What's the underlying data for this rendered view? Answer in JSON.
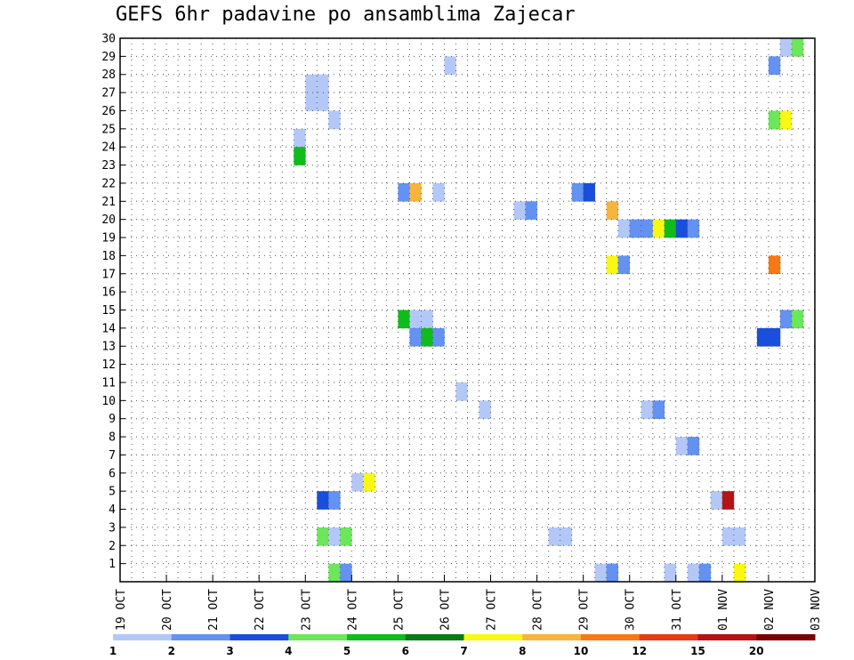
{
  "chart_data": {
    "type": "heatmap",
    "title": "GEFS 6hr padavine po ansamblima Zajecar",
    "xlabel": "",
    "ylabel": "",
    "x_tick_labels": [
      "19 OCT",
      "20 OCT",
      "21 OCT",
      "22 OCT",
      "23 OCT",
      "24 OCT",
      "25 OCT",
      "26 OCT",
      "27 OCT",
      "28 OCT",
      "29 OCT",
      "30 OCT",
      "31 OCT",
      "01 NOV",
      "02 NOV",
      "03 NOV"
    ],
    "y_tick_labels": [
      "1",
      "2",
      "3",
      "4",
      "5",
      "6",
      "7",
      "8",
      "9",
      "10",
      "11",
      "12",
      "13",
      "14",
      "15",
      "16",
      "17",
      "18",
      "19",
      "20",
      "21",
      "22",
      "23",
      "24",
      "25",
      "26",
      "27",
      "28",
      "29",
      "30"
    ],
    "x_range_steps": [
      0,
      60
    ],
    "y_range": [
      0,
      30
    ],
    "grid": true,
    "colorbar": {
      "labels": [
        "1",
        "2",
        "3",
        "4",
        "5",
        "6",
        "7",
        "8",
        "10",
        "12",
        "15",
        "20"
      ],
      "colors": [
        "#b4c8f8",
        "#6492f2",
        "#1a4fdc",
        "#6ce65a",
        "#10bc1c",
        "#0a7a14",
        "#f8f814",
        "#f8b43c",
        "#f87814",
        "#e63c14",
        "#b41414",
        "#780000"
      ]
    },
    "cells": [
      {
        "member": 30,
        "step": 57,
        "level": 1
      },
      {
        "member": 30,
        "step": 58,
        "level": 4
      },
      {
        "member": 29,
        "step": 28,
        "level": 1
      },
      {
        "member": 29,
        "step": 56,
        "level": 2
      },
      {
        "member": 28,
        "step": 16,
        "level": 1
      },
      {
        "member": 28,
        "step": 17,
        "level": 1
      },
      {
        "member": 27,
        "step": 16,
        "level": 1
      },
      {
        "member": 27,
        "step": 17,
        "level": 1
      },
      {
        "member": 26,
        "step": 18,
        "level": 1
      },
      {
        "member": 26,
        "step": 56,
        "level": 4
      },
      {
        "member": 26,
        "step": 57,
        "level": 7
      },
      {
        "member": 25,
        "step": 15,
        "level": 1
      },
      {
        "member": 24,
        "step": 15,
        "level": 5
      },
      {
        "member": 22,
        "step": 24,
        "level": 2
      },
      {
        "member": 22,
        "step": 25,
        "level": 8
      },
      {
        "member": 22,
        "step": 27,
        "level": 1
      },
      {
        "member": 22,
        "step": 39,
        "level": 2
      },
      {
        "member": 22,
        "step": 40,
        "level": 3
      },
      {
        "member": 21,
        "step": 34,
        "level": 1
      },
      {
        "member": 21,
        "step": 35,
        "level": 2
      },
      {
        "member": 21,
        "step": 42,
        "level": 8
      },
      {
        "member": 20,
        "step": 43,
        "level": 1
      },
      {
        "member": 20,
        "step": 44,
        "level": 2
      },
      {
        "member": 20,
        "step": 45,
        "level": 2
      },
      {
        "member": 20,
        "step": 46,
        "level": 7
      },
      {
        "member": 20,
        "step": 47,
        "level": 5
      },
      {
        "member": 20,
        "step": 48,
        "level": 3
      },
      {
        "member": 20,
        "step": 49,
        "level": 2
      },
      {
        "member": 18,
        "step": 42,
        "level": 7
      },
      {
        "member": 18,
        "step": 43,
        "level": 2
      },
      {
        "member": 18,
        "step": 56,
        "level": 9
      },
      {
        "member": 15,
        "step": 24,
        "level": 5
      },
      {
        "member": 15,
        "step": 25,
        "level": 1
      },
      {
        "member": 15,
        "step": 26,
        "level": 1
      },
      {
        "member": 15,
        "step": 57,
        "level": 2
      },
      {
        "member": 15,
        "step": 58,
        "level": 4
      },
      {
        "member": 14,
        "step": 25,
        "level": 2
      },
      {
        "member": 14,
        "step": 26,
        "level": 5
      },
      {
        "member": 14,
        "step": 27,
        "level": 2
      },
      {
        "member": 14,
        "step": 55,
        "level": 3
      },
      {
        "member": 14,
        "step": 56,
        "level": 3
      },
      {
        "member": 11,
        "step": 29,
        "level": 1
      },
      {
        "member": 10,
        "step": 31,
        "level": 1
      },
      {
        "member": 10,
        "step": 45,
        "level": 1
      },
      {
        "member": 10,
        "step": 46,
        "level": 2
      },
      {
        "member": 8,
        "step": 48,
        "level": 1
      },
      {
        "member": 8,
        "step": 49,
        "level": 2
      },
      {
        "member": 6,
        "step": 20,
        "level": 1
      },
      {
        "member": 6,
        "step": 21,
        "level": 7
      },
      {
        "member": 5,
        "step": 17,
        "level": 3
      },
      {
        "member": 5,
        "step": 18,
        "level": 2
      },
      {
        "member": 5,
        "step": 51,
        "level": 1
      },
      {
        "member": 5,
        "step": 52,
        "level": 11
      },
      {
        "member": 3,
        "step": 17,
        "level": 4
      },
      {
        "member": 3,
        "step": 18,
        "level": 1
      },
      {
        "member": 3,
        "step": 19,
        "level": 4
      },
      {
        "member": 3,
        "step": 37,
        "level": 1
      },
      {
        "member": 3,
        "step": 38,
        "level": 1
      },
      {
        "member": 3,
        "step": 52,
        "level": 1
      },
      {
        "member": 3,
        "step": 53,
        "level": 1
      },
      {
        "member": 1,
        "step": 18,
        "level": 4
      },
      {
        "member": 1,
        "step": 19,
        "level": 2
      },
      {
        "member": 1,
        "step": 41,
        "level": 1
      },
      {
        "member": 1,
        "step": 42,
        "level": 2
      },
      {
        "member": 1,
        "step": 47,
        "level": 1
      },
      {
        "member": 1,
        "step": 49,
        "level": 1
      },
      {
        "member": 1,
        "step": 50,
        "level": 2
      },
      {
        "member": 1,
        "step": 53,
        "level": 7
      }
    ]
  }
}
